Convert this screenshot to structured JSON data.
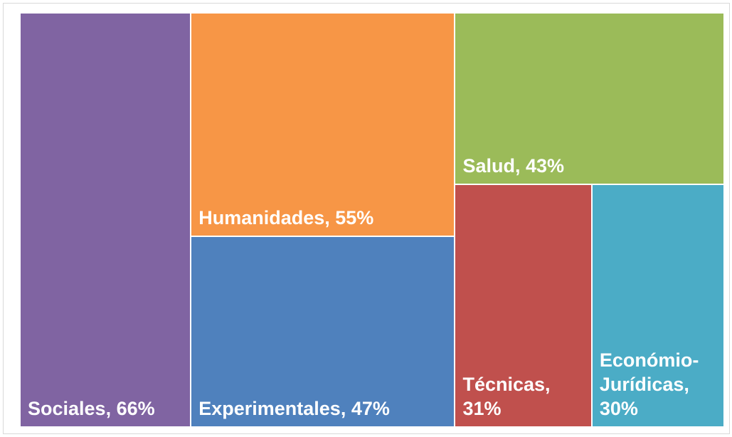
{
  "chart_data": {
    "type": "treemap",
    "values": [
      66,
      55,
      47,
      43,
      31,
      30
    ],
    "value_labels": [
      "Sociales, 66%",
      "Humanidades, 55%",
      "Experimentales, 47%",
      "Salud, 43%",
      "Técnicas, 31%",
      "Económio-Jurídicas, 30%"
    ],
    "colors": [
      "#8064a2",
      "#f79646",
      "#4f81bd",
      "#9bbb59",
      "#c0504d",
      "#4bacc6"
    ]
  }
}
